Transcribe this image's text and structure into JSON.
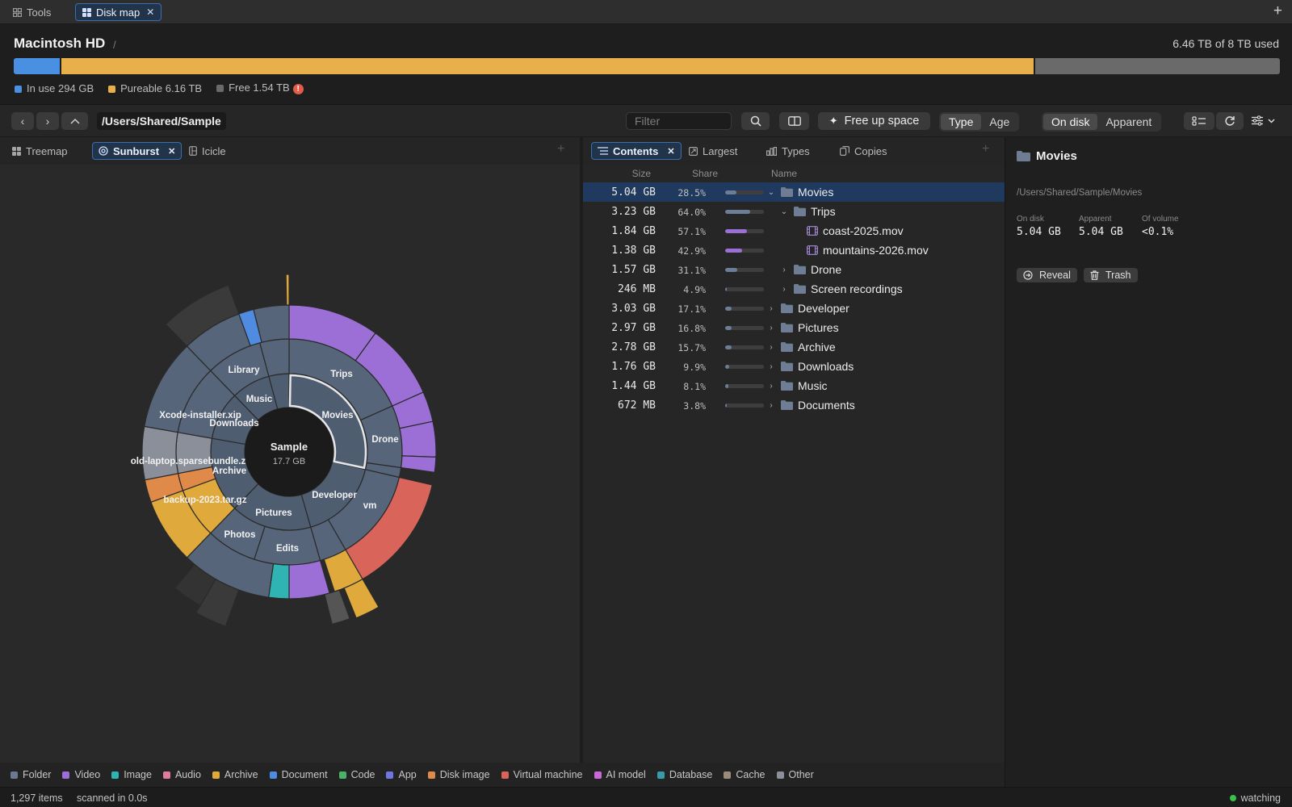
{
  "top_tabs": [
    {
      "label": "Tools"
    },
    {
      "label": "Disk map",
      "active": true
    }
  ],
  "volume": {
    "name": "Macintosh HD",
    "separator": "/",
    "usage_text": "6.46 TB of 8 TB used",
    "bar": {
      "in_use_fraction": 0.0365,
      "purgeable_fraction": 0.77,
      "free_fraction": 0.1935
    },
    "legend": [
      {
        "label": "In use 294 GB",
        "color": "#4a90e2"
      },
      {
        "label": "Pureable 6.16 TB",
        "color": "#e8b04a"
      },
      {
        "label": "Free 1.54 TB",
        "color": "#6a6a6a",
        "warning": "!"
      }
    ]
  },
  "toolbar": {
    "path": "/Users/Shared/Sample",
    "filter_placeholder": "Filter",
    "free_up_label": "Free up space",
    "color_by": [
      "Type",
      "Age"
    ],
    "color_by_selected": "Type",
    "size_mode": [
      "On disk",
      "Apparent"
    ],
    "size_mode_selected": "On disk"
  },
  "viz_tabs": [
    {
      "label": "Treemap"
    },
    {
      "label": "Sunburst",
      "active": true
    },
    {
      "label": "Icicle"
    }
  ],
  "sunburst": {
    "center_title": "Sample",
    "center_size": "17.7 GB",
    "labels": {
      "trips": "Trips",
      "movies": "Movies",
      "drone": "Drone",
      "vm": "vm",
      "developer": "Developer",
      "edits": "Edits",
      "pictures": "Pictures",
      "photos": "Photos",
      "archive": "Archive",
      "downloads": "Downloads",
      "music": "Music",
      "library": "Library",
      "xcode": "Xcode-installer.xip",
      "laptop": "old-laptop.sparsebundle.z",
      "backup": "backup-2023.tar.gz"
    }
  },
  "content_tabs": [
    {
      "label": "Contents",
      "active": true
    },
    {
      "label": "Largest"
    },
    {
      "label": "Types"
    },
    {
      "label": "Copies"
    }
  ],
  "columns": {
    "size": "Size",
    "share": "Share",
    "name": "Name"
  },
  "rows": [
    {
      "size": "5.04 GB",
      "share": "28.5%",
      "share_value": 0.285,
      "name": "Movies",
      "kind": "folder",
      "depth": 0,
      "expanded": true,
      "selected": true
    },
    {
      "size": "3.23 GB",
      "share": "64.0%",
      "share_value": 0.64,
      "name": "Trips",
      "kind": "folder",
      "depth": 1,
      "expanded": true
    },
    {
      "size": "1.84 GB",
      "share": "57.1%",
      "share_value": 0.571,
      "name": "coast-2025.mov",
      "kind": "video",
      "depth": 2
    },
    {
      "size": "1.38 GB",
      "share": "42.9%",
      "share_value": 0.429,
      "name": "mountains-2026.mov",
      "kind": "video",
      "depth": 2
    },
    {
      "size": "1.57 GB",
      "share": "31.1%",
      "share_value": 0.311,
      "name": "Drone",
      "kind": "folder",
      "depth": 1,
      "expanded": false
    },
    {
      "size": "246 MB",
      "share": "4.9%",
      "share_value": 0.049,
      "name": "Screen recordings",
      "kind": "folder",
      "depth": 1,
      "expanded": false
    },
    {
      "size": "3.03 GB",
      "share": "17.1%",
      "share_value": 0.171,
      "name": "Developer",
      "kind": "folder",
      "depth": 0,
      "expanded": false
    },
    {
      "size": "2.97 GB",
      "share": "16.8%",
      "share_value": 0.168,
      "name": "Pictures",
      "kind": "folder",
      "depth": 0,
      "expanded": false
    },
    {
      "size": "2.78 GB",
      "share": "15.7%",
      "share_value": 0.157,
      "name": "Archive",
      "kind": "folder",
      "depth": 0,
      "expanded": false
    },
    {
      "size": "1.76 GB",
      "share": "9.9%",
      "share_value": 0.099,
      "name": "Downloads",
      "kind": "folder",
      "depth": 0,
      "expanded": false
    },
    {
      "size": "1.44 GB",
      "share": "8.1%",
      "share_value": 0.081,
      "name": "Music",
      "kind": "folder",
      "depth": 0,
      "expanded": false
    },
    {
      "size": "672 MB",
      "share": "3.8%",
      "share_value": 0.038,
      "name": "Documents",
      "kind": "folder",
      "depth": 0,
      "expanded": false
    }
  ],
  "inspector": {
    "title": "Movies",
    "path": "/Users/Shared/Sample/Movies",
    "stats": [
      {
        "label": "On disk",
        "value": "5.04 GB"
      },
      {
        "label": "Apparent",
        "value": "5.04 GB"
      },
      {
        "label": "Of volume",
        "value": "<0.1%"
      }
    ],
    "reveal_label": "Reveal",
    "trash_label": "Trash"
  },
  "type_legend": [
    {
      "label": "Folder",
      "color": "#6b7a90"
    },
    {
      "label": "Video",
      "color": "#9c6fd6"
    },
    {
      "label": "Image",
      "color": "#2fb3b3"
    },
    {
      "label": "Audio",
      "color": "#e07ba0"
    },
    {
      "label": "Archive",
      "color": "#e0a93b"
    },
    {
      "label": "Document",
      "color": "#4f8be0"
    },
    {
      "label": "Code",
      "color": "#4caf6a"
    },
    {
      "label": "App",
      "color": "#6f76e0"
    },
    {
      "label": "Disk image",
      "color": "#e08a4a"
    },
    {
      "label": "Virtual machine",
      "color": "#d9655a"
    },
    {
      "label": "AI model",
      "color": "#c86ad6"
    },
    {
      "label": "Database",
      "color": "#3a9aa8"
    },
    {
      "label": "Cache",
      "color": "#9a8c7a"
    },
    {
      "label": "Other",
      "color": "#8a8f9a"
    }
  ],
  "status": {
    "items": "1,297 items",
    "scan": "scanned in 0.0s",
    "watch": "watching",
    "watch_color": "#36c24a"
  },
  "colors": {
    "accent": "#3a6fae",
    "selection": "#1f3a5e",
    "folder": "#4f5d70"
  }
}
